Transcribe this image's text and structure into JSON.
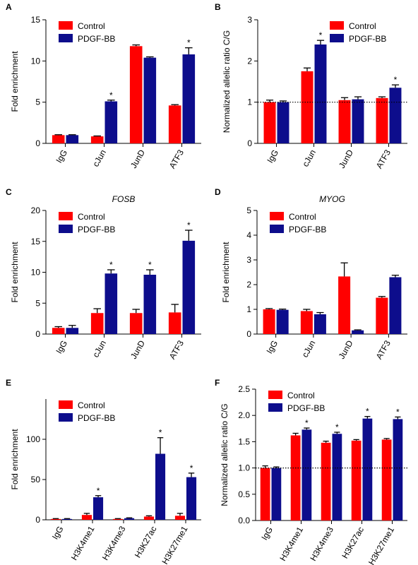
{
  "chart_data": [
    {
      "type": "bar",
      "panel": "A",
      "y_label": "Fold enrichment",
      "categories": [
        "IgG",
        "cJun",
        "JunD",
        "ATF3"
      ],
      "series": [
        {
          "name": "Control",
          "color": "#ff0000",
          "values": [
            1.0,
            0.85,
            11.8,
            4.6
          ],
          "errors": [
            0.05,
            0.05,
            0.15,
            0.1
          ]
        },
        {
          "name": "PDGF-BB",
          "color": "#0d0d8c",
          "values": [
            1.0,
            5.1,
            10.4,
            10.8
          ],
          "errors": [
            0.05,
            0.15,
            0.1,
            0.8
          ]
        }
      ],
      "ylim": [
        0,
        15
      ],
      "yticks": [
        0,
        5,
        10,
        15
      ],
      "legend": "upper left",
      "annotations": [
        {
          "text": "*",
          "series": "PDGF-BB",
          "category": "cJun"
        },
        {
          "text": "*",
          "series": "PDGF-BB",
          "category": "ATF3"
        }
      ]
    },
    {
      "type": "bar",
      "panel": "B",
      "y_label": "Normalized allelic ratio C/G",
      "categories": [
        "IgG",
        "cJun",
        "JunD",
        "ATF3"
      ],
      "series": [
        {
          "name": "Control",
          "color": "#ff0000",
          "values": [
            1.0,
            1.75,
            1.05,
            1.1
          ],
          "errors": [
            0.05,
            0.08,
            0.06,
            0.03
          ]
        },
        {
          "name": "PDGF-BB",
          "color": "#0d0d8c",
          "values": [
            1.0,
            2.4,
            1.07,
            1.35
          ],
          "errors": [
            0.03,
            0.1,
            0.06,
            0.07
          ]
        }
      ],
      "ylim": [
        0,
        3
      ],
      "yticks": [
        0,
        1,
        2,
        3
      ],
      "legend": "upper right",
      "reference_line": 1,
      "annotations": [
        {
          "text": "*",
          "series": "PDGF-BB",
          "category": "cJun"
        },
        {
          "text": "*",
          "series": "PDGF-BB",
          "category": "ATF3"
        }
      ]
    },
    {
      "type": "bar",
      "panel": "C",
      "title": "FOSB",
      "title_style": "italic",
      "y_label": "Fold enrichment",
      "categories": [
        "IgG",
        "cJun",
        "JunD",
        "ATF3"
      ],
      "series": [
        {
          "name": "Control",
          "color": "#ff0000",
          "values": [
            1.0,
            3.4,
            3.4,
            3.5
          ],
          "errors": [
            0.2,
            0.7,
            0.6,
            1.3
          ]
        },
        {
          "name": "PDGF-BB",
          "color": "#0d0d8c",
          "values": [
            1.0,
            9.8,
            9.6,
            15.1
          ],
          "errors": [
            0.4,
            0.6,
            0.8,
            1.7
          ]
        }
      ],
      "ylim": [
        0,
        20
      ],
      "yticks": [
        0,
        5,
        10,
        15,
        20
      ],
      "legend": "upper left",
      "annotations": [
        {
          "text": "*",
          "series": "PDGF-BB",
          "category": "cJun"
        },
        {
          "text": "*",
          "series": "PDGF-BB",
          "category": "JunD"
        },
        {
          "text": "*",
          "series": "PDGF-BB",
          "category": "ATF3"
        }
      ]
    },
    {
      "type": "bar",
      "panel": "D",
      "title": "MYOG",
      "title_style": "italic",
      "y_label": "Fold enrichment",
      "categories": [
        "IgG",
        "cJun",
        "JunD",
        "ATF3"
      ],
      "series": [
        {
          "name": "Control",
          "color": "#ff0000",
          "values": [
            1.0,
            0.93,
            2.33,
            1.47
          ],
          "errors": [
            0.03,
            0.07,
            0.55,
            0.05
          ]
        },
        {
          "name": "PDGF-BB",
          "color": "#0d0d8c",
          "values": [
            0.98,
            0.8,
            0.15,
            2.3
          ],
          "errors": [
            0.03,
            0.07,
            0.02,
            0.08
          ]
        }
      ],
      "ylim": [
        0,
        5
      ],
      "yticks": [
        0,
        1,
        2,
        3,
        4,
        5
      ],
      "legend": "upper left",
      "annotations": []
    },
    {
      "type": "bar",
      "panel": "E",
      "y_label": "Fold enrichment",
      "categories": [
        "IgG",
        "H3K4me1",
        "H3K4me3",
        "H3K27ac",
        "H3K27me1"
      ],
      "series": [
        {
          "name": "Control",
          "color": "#ff0000",
          "values": [
            1,
            6,
            1,
            4,
            5
          ],
          "errors": [
            0.5,
            2,
            0.5,
            1,
            3
          ]
        },
        {
          "name": "PDGF-BB",
          "color": "#0d0d8c",
          "values": [
            1,
            28,
            2,
            82,
            53
          ],
          "errors": [
            0.5,
            2,
            0.5,
            20,
            5
          ]
        }
      ],
      "ylim": [
        0,
        150
      ],
      "yticks": [
        0,
        50,
        100
      ],
      "legend": "upper left",
      "annotations": [
        {
          "text": "*",
          "series": "PDGF-BB",
          "category": "H3K4me1"
        },
        {
          "text": "*",
          "series": "PDGF-BB",
          "category": "H3K27ac"
        },
        {
          "text": "*",
          "series": "PDGF-BB",
          "category": "H3K27me1"
        }
      ]
    },
    {
      "type": "bar",
      "panel": "F",
      "y_label": "Normalized allelic ratio C/G",
      "categories": [
        "IgG",
        "H3K4me1",
        "H3K4me3",
        "H3K27ac",
        "H3K27me1"
      ],
      "series": [
        {
          "name": "Control",
          "color": "#ff0000",
          "values": [
            1.0,
            1.62,
            1.48,
            1.52,
            1.54
          ],
          "errors": [
            0.04,
            0.04,
            0.03,
            0.02,
            0.02
          ]
        },
        {
          "name": "PDGF-BB",
          "color": "#0d0d8c",
          "values": [
            1.0,
            1.73,
            1.65,
            1.94,
            1.93
          ],
          "errors": [
            0.02,
            0.03,
            0.03,
            0.04,
            0.04
          ]
        }
      ],
      "ylim": [
        0,
        2.5
      ],
      "yticks": [
        {
          "value": 0,
          "label": "0.0"
        },
        0.5,
        {
          "value": 1,
          "label": "1.0"
        },
        1.5,
        {
          "value": 2,
          "label": "2.0"
        },
        2.5
      ],
      "legend": "upper left",
      "reference_line": 1,
      "annotations": [
        {
          "text": "*",
          "series": "PDGF-BB",
          "category": "H3K4me1"
        },
        {
          "text": "*",
          "series": "PDGF-BB",
          "category": "H3K4me3"
        },
        {
          "text": "*",
          "series": "PDGF-BB",
          "category": "H3K27ac"
        },
        {
          "text": "*",
          "series": "PDGF-BB",
          "category": "H3K27me1"
        }
      ]
    }
  ]
}
